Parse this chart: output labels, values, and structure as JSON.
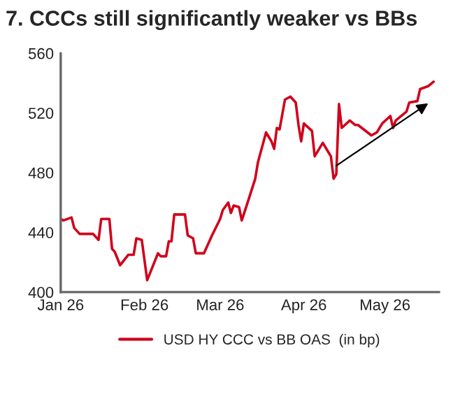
{
  "chart_data": {
    "type": "line",
    "title": "7. CCCs still significantly weaker vs BBs",
    "x": [
      "2026-01-01",
      "2026-01-02",
      "2026-01-05",
      "2026-01-06",
      "2026-01-08",
      "2026-01-13",
      "2026-01-15",
      "2026-01-16",
      "2026-01-19",
      "2026-01-20",
      "2026-01-21",
      "2026-01-23",
      "2026-01-26",
      "2026-01-28",
      "2026-01-29",
      "2026-01-31",
      "2026-02-02",
      "2026-02-04",
      "2026-02-06",
      "2026-02-07",
      "2026-02-09",
      "2026-02-10",
      "2026-02-11",
      "2026-02-12",
      "2026-02-16",
      "2026-02-17",
      "2026-02-19",
      "2026-02-20",
      "2026-02-23",
      "2026-02-26",
      "2026-03-01",
      "2026-03-02",
      "2026-03-04",
      "2026-03-05",
      "2026-03-06",
      "2026-03-08",
      "2026-03-09",
      "2026-03-11",
      "2026-03-14",
      "2026-03-15",
      "2026-03-18",
      "2026-03-20",
      "2026-03-21",
      "2026-03-22",
      "2026-03-23",
      "2026-03-25",
      "2026-03-27",
      "2026-03-29",
      "2026-03-30",
      "2026-03-31",
      "2026-04-01",
      "2026-04-04",
      "2026-04-05",
      "2026-04-08",
      "2026-04-10",
      "2026-04-11",
      "2026-04-12",
      "2026-04-13",
      "2026-04-14",
      "2026-04-15",
      "2026-04-18",
      "2026-04-20",
      "2026-04-21",
      "2026-04-26",
      "2026-04-28",
      "2026-04-30",
      "2026-05-03",
      "2026-05-04",
      "2026-05-05",
      "2026-05-09",
      "2026-05-10",
      "2026-05-13",
      "2026-05-14",
      "2026-05-17",
      "2026-05-19"
    ],
    "series": [
      {
        "name": "USD HY CCC vs BB OAS  (in bp)",
        "color": "#d0021b",
        "values": [
          449,
          448,
          450,
          443,
          439,
          439,
          435,
          449,
          449,
          429,
          427,
          418,
          425,
          425,
          436,
          435,
          408,
          417,
          426,
          424,
          424,
          434,
          434,
          452,
          452,
          438,
          436,
          426,
          426,
          438,
          449,
          455,
          460,
          453,
          458,
          457,
          448,
          459,
          476,
          487,
          507,
          501,
          496,
          510,
          509,
          529,
          531,
          527,
          512,
          501,
          513,
          508,
          491,
          500,
          494,
          491,
          476,
          479,
          526,
          510,
          515,
          512,
          512,
          505,
          507,
          513,
          518,
          510,
          515,
          521,
          527,
          528,
          536,
          538,
          541
        ]
      }
    ],
    "xlim": [
      "2026-01-01",
      "2026-05-21"
    ],
    "xticks": [
      {
        "value": "2026-01-01",
        "label": "Jan 26"
      },
      {
        "value": "2026-02-01",
        "label": "Feb 26"
      },
      {
        "value": "2026-03-01",
        "label": "Mar 26"
      },
      {
        "value": "2026-04-01",
        "label": "Apr 26"
      },
      {
        "value": "2026-05-01",
        "label": "May 26"
      }
    ],
    "ylim": [
      400,
      560
    ],
    "yticks": [
      400,
      440,
      480,
      520,
      560
    ],
    "legend": "bottom",
    "grid": false,
    "marker": "none",
    "line_style": "solid"
  }
}
